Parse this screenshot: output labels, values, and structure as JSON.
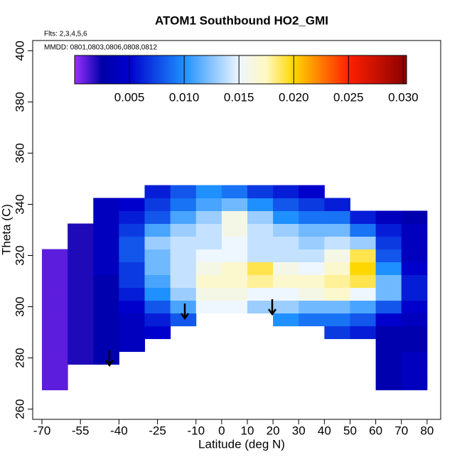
{
  "chart_data": {
    "type": "heatmap",
    "title": "ATOM1 Southbound HO2_GMI",
    "annotations": [
      "Flts: 2,3,4,5,6",
      "MMDD: 0801,0803,0806,0808,0812"
    ],
    "xlabel": "Latitude (deg N)",
    "ylabel": "Theta (C)",
    "xlim": [
      -73.6,
      85.3
    ],
    "ylim": [
      256,
      404
    ],
    "xticks": [
      -70,
      -55,
      -40,
      -25,
      -10,
      0,
      10,
      20,
      30,
      40,
      50,
      60,
      70,
      80
    ],
    "yticks": [
      260,
      280,
      300,
      320,
      340,
      360,
      380,
      400
    ],
    "clim": [
      0,
      0.0303
    ],
    "cticks": [
      0.005,
      {
        "value": 0.01,
        "label": "0.010"
      },
      0.015,
      {
        "value": 0.02,
        "label": "0.020"
      },
      0.025,
      {
        "value": 0.03,
        "label": "0.030"
      }
    ],
    "colorscale": [
      [
        0,
        "#9b30ff"
      ],
      [
        0.0025,
        "#0000a8"
      ],
      [
        0.005,
        "#0000cd"
      ],
      [
        0.01,
        "#1e90ff"
      ],
      [
        0.015,
        "#eef6ff"
      ],
      [
        0.0175,
        "#fff8c0"
      ],
      [
        0.02,
        "#ffd700"
      ],
      [
        0.025,
        "#ff2000"
      ],
      [
        0.0303,
        "#8b0000"
      ]
    ],
    "x": [
      -65,
      -55,
      -45,
      -35,
      -25,
      -15,
      -5,
      5,
      15,
      25,
      35,
      45,
      55,
      65,
      75
    ],
    "y": [
      270,
      275,
      280,
      285,
      290,
      295,
      300,
      305,
      310,
      315,
      320,
      325,
      330,
      335,
      340,
      345
    ],
    "z": [
      [
        0.001,
        null,
        null,
        null,
        null,
        null,
        null,
        null,
        null,
        null,
        null,
        null,
        null,
        0.003,
        0.004
      ],
      [
        0.001,
        null,
        null,
        null,
        null,
        null,
        null,
        null,
        null,
        null,
        null,
        null,
        null,
        0.003,
        0.004
      ],
      [
        0.001,
        0.002,
        0.003,
        null,
        null,
        null,
        null,
        null,
        null,
        null,
        null,
        null,
        null,
        0.003,
        0.004
      ],
      [
        0.001,
        0.002,
        0.003,
        0.004,
        null,
        null,
        null,
        null,
        null,
        null,
        null,
        null,
        null,
        0.003,
        0.003
      ],
      [
        0.001,
        0.002,
        0.003,
        0.004,
        0.005,
        null,
        null,
        null,
        null,
        null,
        null,
        0.007,
        0.006,
        0.003,
        0.003
      ],
      [
        0.001,
        0.002,
        0.003,
        0.004,
        0.006,
        0.008,
        null,
        null,
        null,
        0.01,
        0.009,
        0.009,
        0.008,
        0.005,
        0.004
      ],
      [
        0.001,
        0.002,
        0.003,
        0.005,
        0.008,
        0.011,
        0.015,
        0.015,
        0.013,
        0.013,
        0.012,
        0.012,
        0.011,
        0.008,
        0.005
      ],
      [
        0.001,
        0.002,
        0.003,
        0.006,
        0.01,
        0.013,
        0.016,
        0.016,
        0.015,
        0.015,
        0.016,
        0.017,
        0.015,
        0.012,
        0.006
      ],
      [
        0.001,
        0.002,
        0.003,
        0.007,
        0.011,
        0.014,
        0.017,
        0.017,
        0.018,
        0.017,
        0.017,
        0.018,
        0.019,
        0.012,
        0.006
      ],
      [
        0.001,
        0.002,
        0.004,
        0.007,
        0.012,
        0.014,
        0.016,
        0.017,
        0.019,
        0.016,
        0.015,
        0.017,
        0.02,
        0.01,
        0.005
      ],
      [
        0.001,
        0.002,
        0.004,
        0.008,
        0.012,
        0.014,
        0.015,
        0.015,
        0.014,
        0.014,
        0.014,
        0.016,
        0.019,
        0.008,
        0.004
      ],
      [
        null,
        0.002,
        0.004,
        0.008,
        0.013,
        0.014,
        0.014,
        0.015,
        0.014,
        0.014,
        0.013,
        0.014,
        0.013,
        0.007,
        0.004
      ],
      [
        null,
        0.002,
        0.004,
        0.007,
        0.011,
        0.013,
        0.014,
        0.016,
        0.014,
        0.013,
        0.012,
        0.012,
        0.009,
        0.006,
        0.004
      ],
      [
        null,
        null,
        0.004,
        0.006,
        0.008,
        0.011,
        0.013,
        0.016,
        0.013,
        0.01,
        0.009,
        0.009,
        0.006,
        0.004,
        0.003
      ],
      [
        null,
        null,
        0.004,
        0.005,
        0.007,
        0.009,
        0.011,
        0.012,
        0.01,
        0.008,
        0.007,
        0.006,
        null,
        null,
        null
      ],
      [
        null,
        null,
        null,
        null,
        0.006,
        0.008,
        0.01,
        0.009,
        0.007,
        0.006,
        0.005,
        null,
        null,
        null,
        null
      ]
    ]
  }
}
